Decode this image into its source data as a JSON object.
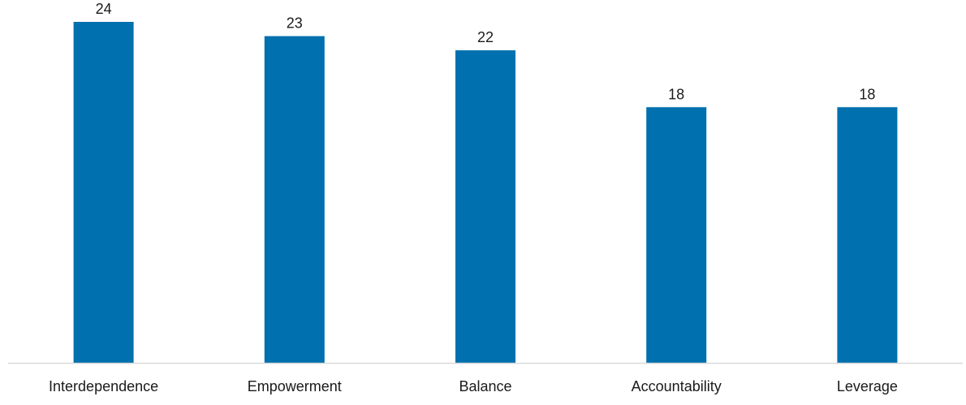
{
  "chart_data": {
    "type": "bar",
    "categories": [
      "Interdependence",
      "Empowerment",
      "Balance",
      "Accountability",
      "Leverage"
    ],
    "values": [
      24,
      23,
      22,
      18,
      18
    ],
    "title": "",
    "xlabel": "",
    "ylabel": "",
    "ylim": [
      0,
      24.4
    ],
    "grid": false,
    "legend": "none",
    "data_labels": true,
    "bar_color": "#0070AF",
    "axis_color": "#D9D9D9"
  }
}
